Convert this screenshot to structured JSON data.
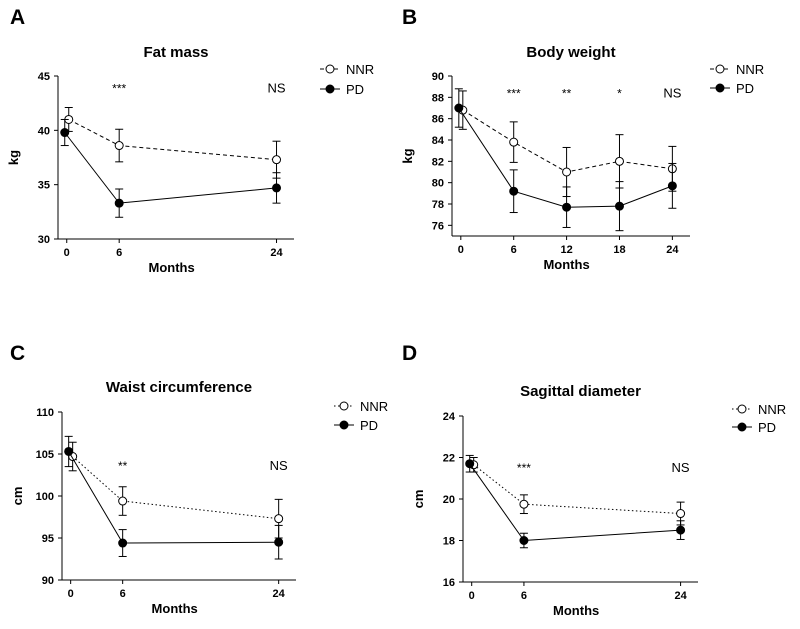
{
  "chart_data": [
    {
      "type": "line",
      "panel": "A",
      "title": "Fat mass",
      "xlabel": "Months",
      "ylabel": "kg",
      "x": [
        0,
        6,
        24
      ],
      "x_ticks": [
        "0",
        "6",
        "24"
      ],
      "y_ticks": [
        "30",
        "35",
        "40",
        "45"
      ],
      "xlim": [
        -1,
        26
      ],
      "ylim": [
        30,
        45
      ],
      "legend_position": "top-right",
      "series": [
        {
          "name": "NNR",
          "marker": "open-circle",
          "line": "dashed",
          "values": [
            41.0,
            38.6,
            37.3
          ],
          "err": [
            1.1,
            1.5,
            1.7
          ]
        },
        {
          "name": "PD",
          "marker": "filled-circle",
          "line": "solid",
          "values": [
            39.8,
            33.3,
            34.7
          ],
          "err": [
            1.2,
            1.3,
            1.4
          ]
        }
      ],
      "annotations": [
        {
          "x": 6,
          "y": 43.5,
          "text": "***"
        },
        {
          "x": 24,
          "y": 43.5,
          "text": "NS"
        }
      ]
    },
    {
      "type": "line",
      "panel": "B",
      "title": "Body weight",
      "xlabel": "Months",
      "ylabel": "kg",
      "x": [
        0,
        6,
        12,
        18,
        24
      ],
      "x_ticks": [
        "0",
        "6",
        "12",
        "18",
        "24"
      ],
      "y_ticks": [
        "76",
        "78",
        "80",
        "82",
        "84",
        "86",
        "88",
        "90"
      ],
      "xlim": [
        -1,
        26
      ],
      "ylim": [
        75,
        90
      ],
      "legend_position": "top-right",
      "series": [
        {
          "name": "NNR",
          "marker": "open-circle",
          "line": "dashed",
          "values": [
            86.8,
            83.8,
            81.0,
            82.0,
            81.3
          ],
          "err": [
            1.8,
            1.9,
            2.3,
            2.5,
            2.1
          ]
        },
        {
          "name": "PD",
          "marker": "filled-circle",
          "line": "solid",
          "values": [
            87.0,
            79.2,
            77.7,
            77.8,
            79.7
          ],
          "err": [
            1.8,
            2.0,
            1.9,
            2.3,
            2.1
          ]
        }
      ],
      "annotations": [
        {
          "x": 6,
          "y": 88.0,
          "text": "***"
        },
        {
          "x": 12,
          "y": 88.0,
          "text": "**"
        },
        {
          "x": 18,
          "y": 88.0,
          "text": "*"
        },
        {
          "x": 24,
          "y": 88.0,
          "text": "NS"
        }
      ]
    },
    {
      "type": "line",
      "panel": "C",
      "title": "Waist circumference",
      "xlabel": "Months",
      "ylabel": "cm",
      "x": [
        0,
        6,
        24
      ],
      "x_ticks": [
        "0",
        "6",
        "24"
      ],
      "y_ticks": [
        "90",
        "95",
        "100",
        "105",
        "110"
      ],
      "xlim": [
        -1,
        26
      ],
      "ylim": [
        90,
        110
      ],
      "legend_position": "top-right",
      "series": [
        {
          "name": "NNR",
          "marker": "open-circle",
          "line": "dotted",
          "values": [
            104.7,
            99.4,
            97.3
          ],
          "err": [
            1.7,
            1.7,
            2.3
          ]
        },
        {
          "name": "PD",
          "marker": "filled-circle",
          "line": "solid",
          "values": [
            105.3,
            94.4,
            94.5
          ],
          "err": [
            1.8,
            1.6,
            2.0
          ]
        }
      ],
      "annotations": [
        {
          "x": 6,
          "y": 103.1,
          "text": "**"
        },
        {
          "x": 24,
          "y": 103.1,
          "text": "NS"
        }
      ]
    },
    {
      "type": "line",
      "panel": "D",
      "title": "Sagittal diameter",
      "xlabel": "Months",
      "ylabel": "cm",
      "x": [
        0,
        6,
        24
      ],
      "x_ticks": [
        "0",
        "6",
        "24"
      ],
      "y_ticks": [
        "16",
        "18",
        "20",
        "22",
        "24"
      ],
      "xlim": [
        -1,
        26
      ],
      "ylim": [
        16,
        24
      ],
      "legend_position": "top-right",
      "series": [
        {
          "name": "NNR",
          "marker": "open-circle",
          "line": "dotted",
          "values": [
            21.65,
            19.75,
            19.3
          ],
          "err": [
            0.35,
            0.45,
            0.55
          ]
        },
        {
          "name": "PD",
          "marker": "filled-circle",
          "line": "solid",
          "values": [
            21.7,
            18.0,
            18.5
          ],
          "err": [
            0.4,
            0.35,
            0.45
          ]
        }
      ],
      "annotations": [
        {
          "x": 6,
          "y": 21.3,
          "text": "***"
        },
        {
          "x": 24,
          "y": 21.3,
          "text": "NS"
        }
      ]
    }
  ]
}
